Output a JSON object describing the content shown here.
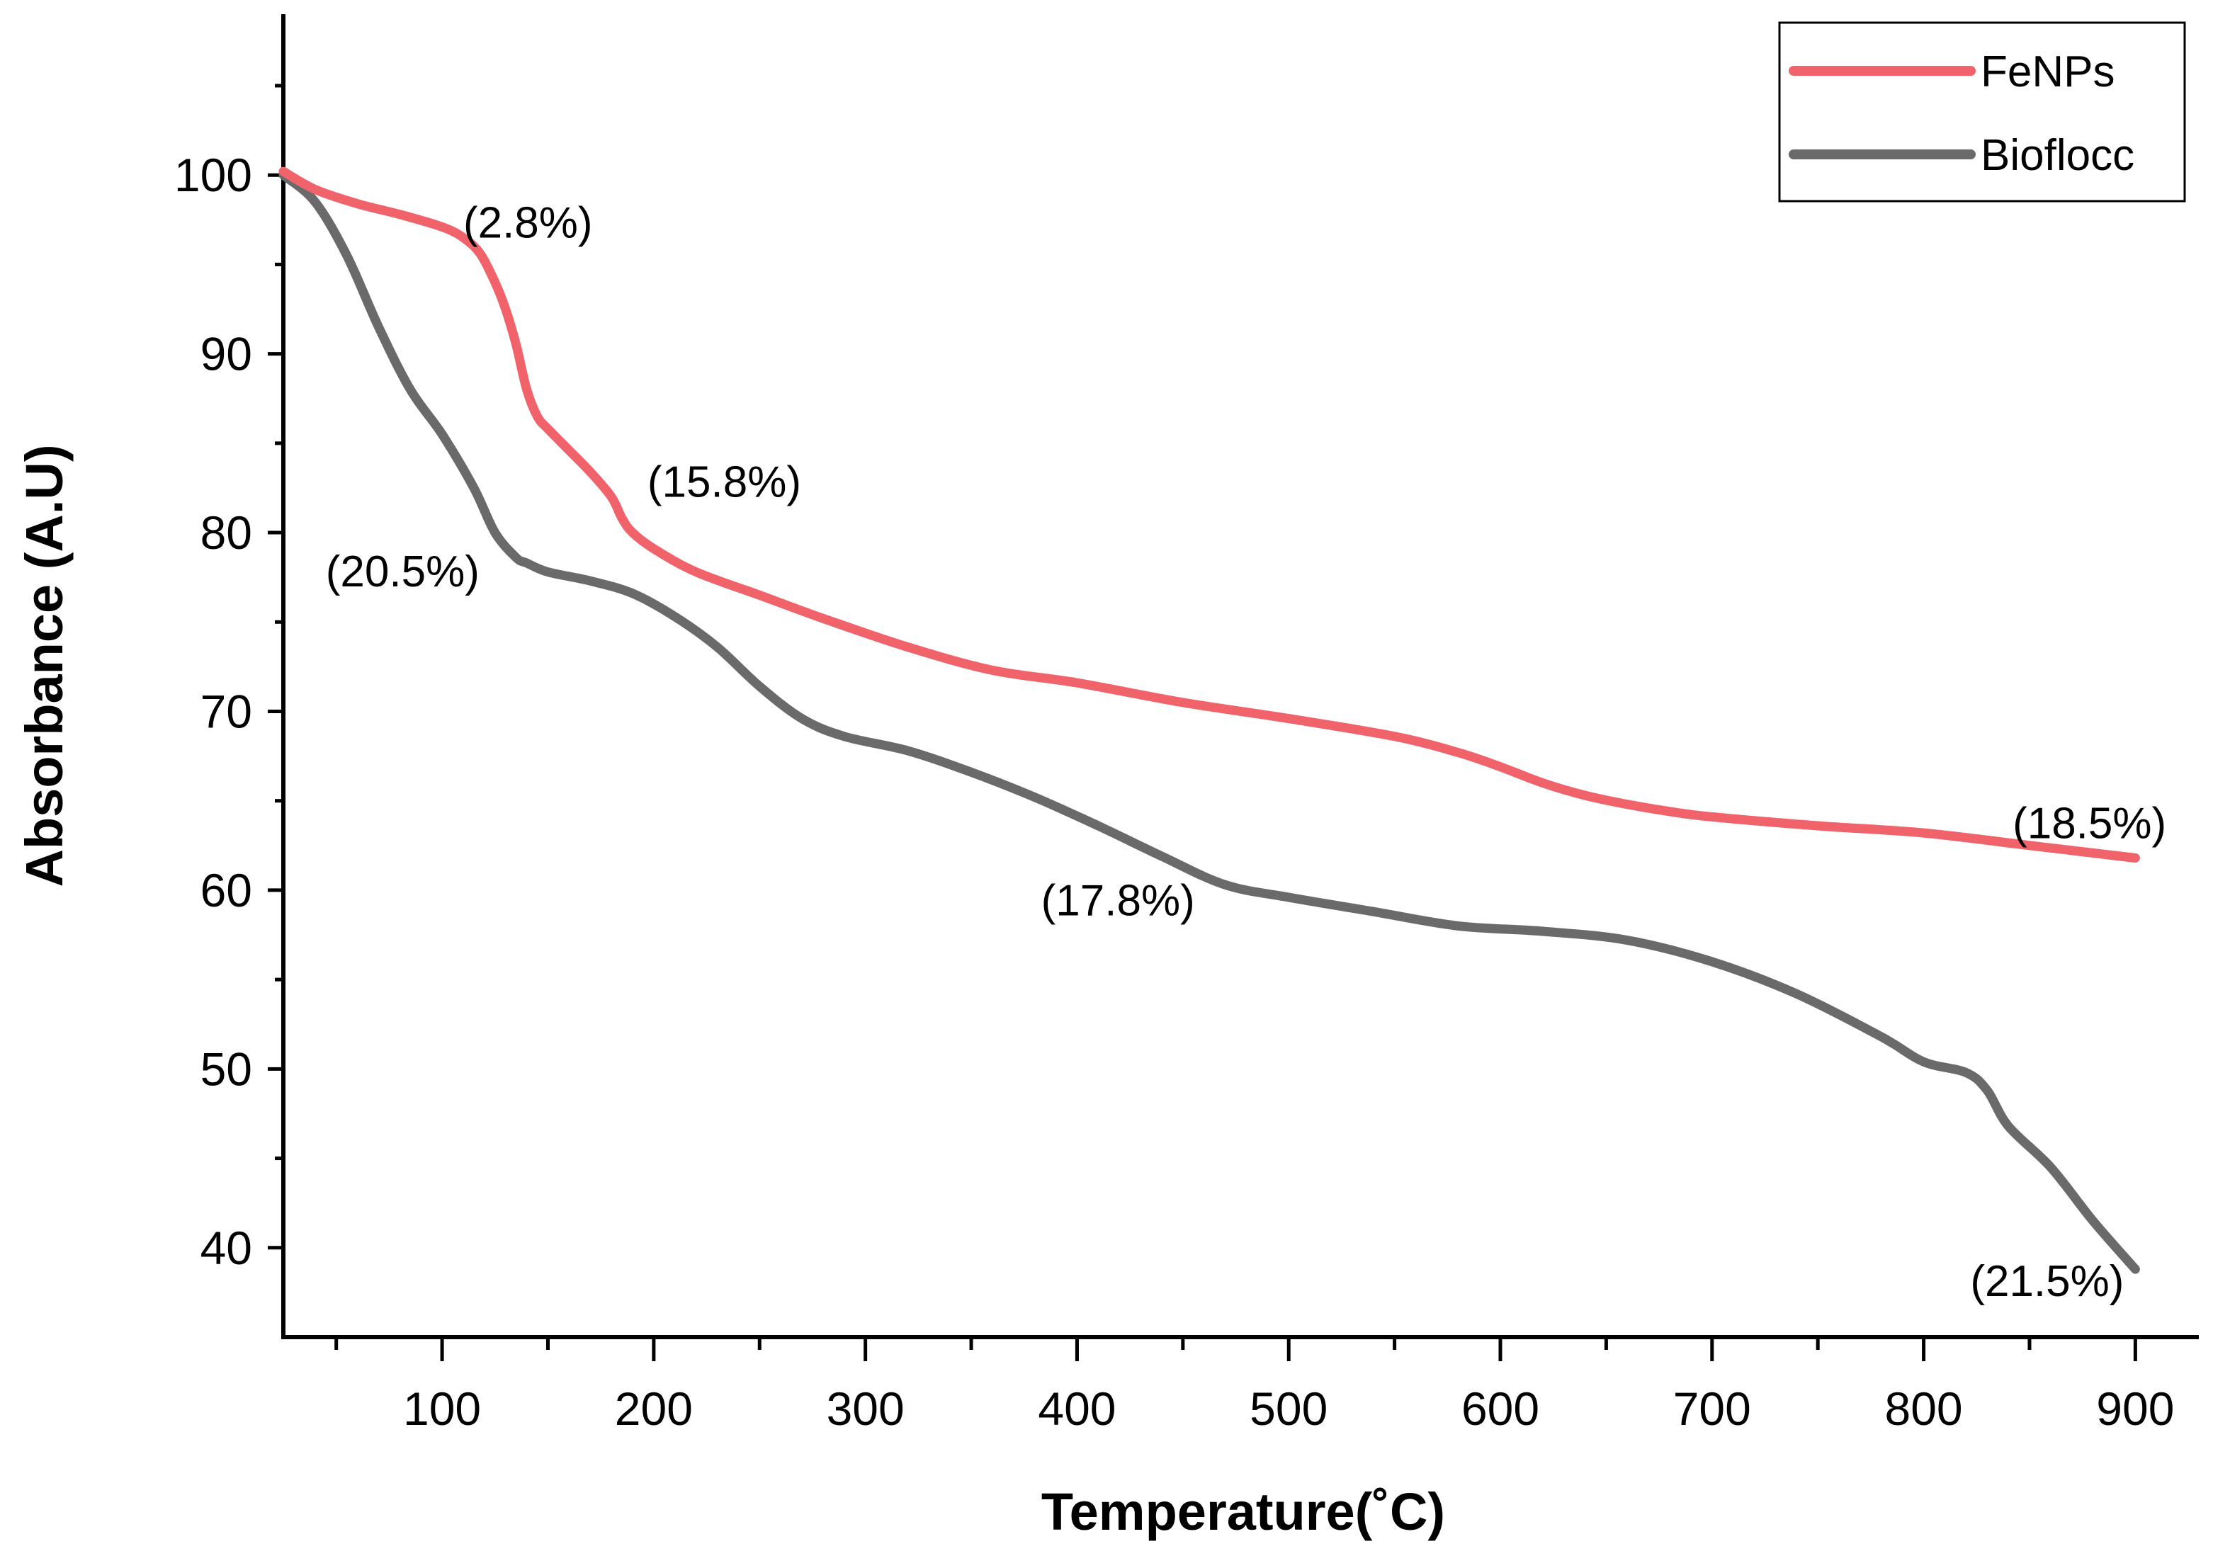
{
  "chart_data": {
    "type": "line",
    "title": "",
    "xlabel": "Temperature(˚C)",
    "ylabel": "Absorbance (A.U)",
    "xlim": [
      25,
      930
    ],
    "ylim": [
      35,
      109
    ],
    "x_ticks": [
      100,
      200,
      300,
      400,
      500,
      600,
      700,
      800,
      900
    ],
    "x_minor_ticks": [
      50,
      150,
      250,
      350,
      450,
      550,
      650,
      750,
      850
    ],
    "y_ticks": [
      40,
      50,
      60,
      70,
      80,
      90,
      100
    ],
    "y_minor_ticks": [
      45,
      55,
      65,
      75,
      85,
      95,
      105
    ],
    "grid": false,
    "legend_position": "top-right",
    "series": [
      {
        "name": "FeNPs",
        "color": "#f0636b",
        "x": [
          25,
          40,
          60,
          80,
          100,
          110,
          118,
          125,
          130,
          135,
          140,
          145,
          150,
          160,
          170,
          180,
          185,
          190,
          200,
          220,
          250,
          280,
          320,
          360,
          400,
          450,
          500,
          550,
          580,
          600,
          620,
          640,
          660,
          680,
          700,
          750,
          800,
          850,
          900
        ],
        "y": [
          100.2,
          99.2,
          98.4,
          97.8,
          97.1,
          96.5,
          95.6,
          94.0,
          92.5,
          90.5,
          88.0,
          86.5,
          85.8,
          84.6,
          83.4,
          82.0,
          80.8,
          80.0,
          79.1,
          77.8,
          76.5,
          75.2,
          73.6,
          72.3,
          71.6,
          70.5,
          69.6,
          68.6,
          67.7,
          66.9,
          66.0,
          65.3,
          64.8,
          64.4,
          64.1,
          63.6,
          63.2,
          62.5,
          61.8
        ]
      },
      {
        "name": "Bioflocc",
        "color": "#6a6a6a",
        "x": [
          25,
          40,
          55,
          70,
          85,
          100,
          115,
          125,
          135,
          140,
          150,
          170,
          190,
          210,
          230,
          250,
          270,
          290,
          320,
          350,
          380,
          410,
          440,
          470,
          500,
          540,
          580,
          620,
          660,
          700,
          740,
          780,
          800,
          820,
          830,
          840,
          860,
          880,
          900
        ],
        "y": [
          100.0,
          98.5,
          95.5,
          91.5,
          88.0,
          85.5,
          82.5,
          80.0,
          78.6,
          78.3,
          77.8,
          77.3,
          76.6,
          75.3,
          73.6,
          71.4,
          69.6,
          68.6,
          67.8,
          66.6,
          65.2,
          63.6,
          61.9,
          60.3,
          59.6,
          58.8,
          58.0,
          57.7,
          57.2,
          56.0,
          54.2,
          51.8,
          50.4,
          49.8,
          48.8,
          46.8,
          44.5,
          41.5,
          38.8
        ]
      }
    ],
    "annotations": [
      {
        "text": "(2.8%)",
        "x": 110,
        "y": 96.5
      },
      {
        "text": "(15.8%)",
        "x": 197,
        "y": 82.0
      },
      {
        "text": "(20.5%)",
        "x": 45,
        "y": 77.0
      },
      {
        "text": "(17.8%)",
        "x": 383,
        "y": 58.6
      },
      {
        "text": "(18.5%)",
        "x": 842,
        "y": 62.9
      },
      {
        "text": "(21.5%)",
        "x": 822,
        "y": 37.3
      }
    ]
  }
}
